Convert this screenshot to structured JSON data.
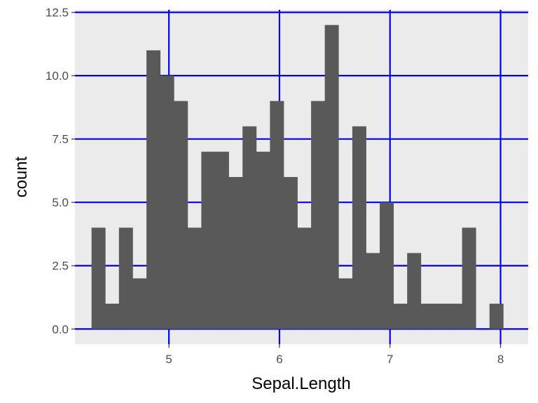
{
  "chart_data": {
    "type": "bar",
    "title": "",
    "xlabel": "Sepal.Length",
    "ylabel": "count",
    "x_ticks": [
      "5",
      "6",
      "7",
      "8"
    ],
    "y_ticks": [
      "0.0",
      "2.5",
      "5.0",
      "7.5",
      "10.0",
      "12.5"
    ],
    "xlim": [
      4.15,
      8.25
    ],
    "ylim": [
      -0.6,
      12.6
    ],
    "bin_width": 0.124,
    "bins": [
      {
        "x0": 4.3,
        "x1": 4.424,
        "count": 4
      },
      {
        "x0": 4.424,
        "x1": 4.548,
        "count": 1
      },
      {
        "x0": 4.548,
        "x1": 4.672,
        "count": 4
      },
      {
        "x0": 4.672,
        "x1": 4.797,
        "count": 2
      },
      {
        "x0": 4.797,
        "x1": 4.921,
        "count": 11
      },
      {
        "x0": 4.921,
        "x1": 5.045,
        "count": 10
      },
      {
        "x0": 5.045,
        "x1": 5.169,
        "count": 9
      },
      {
        "x0": 5.169,
        "x1": 5.293,
        "count": 4
      },
      {
        "x0": 5.293,
        "x1": 5.417,
        "count": 7
      },
      {
        "x0": 5.417,
        "x1": 5.541,
        "count": 7
      },
      {
        "x0": 5.541,
        "x1": 5.666,
        "count": 6
      },
      {
        "x0": 5.666,
        "x1": 5.79,
        "count": 8
      },
      {
        "x0": 5.79,
        "x1": 5.914,
        "count": 7
      },
      {
        "x0": 5.914,
        "x1": 6.038,
        "count": 9
      },
      {
        "x0": 6.038,
        "x1": 6.162,
        "count": 6
      },
      {
        "x0": 6.162,
        "x1": 6.286,
        "count": 4
      },
      {
        "x0": 6.286,
        "x1": 6.41,
        "count": 9
      },
      {
        "x0": 6.41,
        "x1": 6.534,
        "count": 12
      },
      {
        "x0": 6.534,
        "x1": 6.659,
        "count": 2
      },
      {
        "x0": 6.659,
        "x1": 6.783,
        "count": 8
      },
      {
        "x0": 6.783,
        "x1": 6.907,
        "count": 3
      },
      {
        "x0": 6.907,
        "x1": 7.031,
        "count": 5
      },
      {
        "x0": 7.031,
        "x1": 7.155,
        "count": 1
      },
      {
        "x0": 7.155,
        "x1": 7.279,
        "count": 3
      },
      {
        "x0": 7.279,
        "x1": 7.403,
        "count": 1
      },
      {
        "x0": 7.403,
        "x1": 7.528,
        "count": 1
      },
      {
        "x0": 7.528,
        "x1": 7.652,
        "count": 1
      },
      {
        "x0": 7.652,
        "x1": 7.776,
        "count": 4
      },
      {
        "x0": 7.776,
        "x1": 7.9,
        "count": 0
      },
      {
        "x0": 7.9,
        "x1": 8.024,
        "count": 1
      }
    ],
    "grid": true,
    "legend": "none",
    "colors": {
      "bar_fill": "#595959",
      "panel_background": "#ebebeb",
      "grid_line": "#0000ee",
      "tick_label": "#4d4d4d",
      "axis_title": "#000000"
    }
  }
}
